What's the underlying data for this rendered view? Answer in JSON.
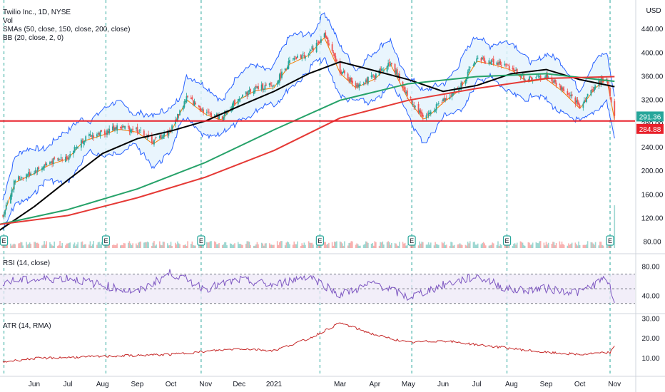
{
  "header": {
    "symbol_line": "Twilio Inc., 1D, NYSE",
    "vol_label": "Vol",
    "sma_label": "SMAs (50, close, 150, close, 200, close)",
    "bb_label": "BB (20, close, 2, 0)",
    "currency_label": "USD"
  },
  "colors": {
    "up": "#26a69a",
    "down": "#ef5350",
    "sma50": "#000000",
    "sma150": "#26a269",
    "sma200": "#e53935",
    "bb_basis": "#f57c00",
    "bb_band": "#2962ff",
    "bb_fill": "#e3f2fd",
    "support": "#e8202a",
    "rsi": "#7e57c2",
    "atr": "#c62828"
  },
  "chart_data": [
    {
      "type": "candlestick",
      "title": "Twilio Inc., 1D, NYSE",
      "x_labels": [
        "Jun",
        "Jul",
        "Aug",
        "Sep",
        "Oct",
        "Nov",
        "Dec",
        "2021",
        "Mar",
        "Apr",
        "May",
        "Jun",
        "Jul",
        "Aug",
        "Sep",
        "Oct",
        "Nov"
      ],
      "y_ticks": [
        80,
        120,
        160,
        200,
        240,
        280,
        320,
        360,
        400,
        440
      ],
      "ylim": [
        70,
        480
      ],
      "last_price_label": "291.36",
      "support_label": "284.88",
      "support_level": 284.88,
      "earnings_marker_label": "E",
      "earnings_markers": [
        "2020-05",
        "2020-08",
        "2020-10",
        "2021-02",
        "2021-05",
        "2021-07",
        "2021-11"
      ],
      "close_path": [
        {
          "x": "2020-05-01",
          "y": 110
        },
        {
          "x": "2020-05-15",
          "y": 185
        },
        {
          "x": "2020-06-01",
          "y": 200
        },
        {
          "x": "2020-06-15",
          "y": 215
        },
        {
          "x": "2020-07-01",
          "y": 225
        },
        {
          "x": "2020-07-15",
          "y": 255
        },
        {
          "x": "2020-08-01",
          "y": 265
        },
        {
          "x": "2020-08-15",
          "y": 275
        },
        {
          "x": "2020-09-01",
          "y": 270
        },
        {
          "x": "2020-09-15",
          "y": 250
        },
        {
          "x": "2020-10-01",
          "y": 270
        },
        {
          "x": "2020-10-15",
          "y": 325
        },
        {
          "x": "2020-11-01",
          "y": 300
        },
        {
          "x": "2020-11-15",
          "y": 290
        },
        {
          "x": "2020-12-01",
          "y": 325
        },
        {
          "x": "2020-12-15",
          "y": 340
        },
        {
          "x": "2021-01-01",
          "y": 345
        },
        {
          "x": "2021-01-15",
          "y": 385
        },
        {
          "x": "2021-02-01",
          "y": 400
        },
        {
          "x": "2021-02-15",
          "y": 430
        },
        {
          "x": "2021-03-01",
          "y": 370
        },
        {
          "x": "2021-03-15",
          "y": 345
        },
        {
          "x": "2021-04-01",
          "y": 360
        },
        {
          "x": "2021-04-15",
          "y": 385
        },
        {
          "x": "2021-05-01",
          "y": 325
        },
        {
          "x": "2021-05-15",
          "y": 290
        },
        {
          "x": "2021-06-01",
          "y": 320
        },
        {
          "x": "2021-06-15",
          "y": 340
        },
        {
          "x": "2021-07-01",
          "y": 390
        },
        {
          "x": "2021-07-15",
          "y": 385
        },
        {
          "x": "2021-08-01",
          "y": 375
        },
        {
          "x": "2021-08-15",
          "y": 355
        },
        {
          "x": "2021-09-01",
          "y": 360
        },
        {
          "x": "2021-09-15",
          "y": 340
        },
        {
          "x": "2021-10-01",
          "y": 310
        },
        {
          "x": "2021-10-15",
          "y": 345
        },
        {
          "x": "2021-10-25",
          "y": 360
        },
        {
          "x": "2021-11-01",
          "y": 291
        }
      ],
      "series": [
        {
          "name": "SMA 50",
          "values": [
            {
              "x": "2020-05-01",
              "y": 100
            },
            {
              "x": "2020-06-01",
              "y": 140
            },
            {
              "x": "2020-07-01",
              "y": 185
            },
            {
              "x": "2020-08-01",
              "y": 230
            },
            {
              "x": "2020-09-01",
              "y": 255
            },
            {
              "x": "2020-10-01",
              "y": 268
            },
            {
              "x": "2020-11-01",
              "y": 285
            },
            {
              "x": "2020-12-01",
              "y": 310
            },
            {
              "x": "2021-01-01",
              "y": 335
            },
            {
              "x": "2021-02-01",
              "y": 365
            },
            {
              "x": "2021-03-01",
              "y": 385
            },
            {
              "x": "2021-04-01",
              "y": 370
            },
            {
              "x": "2021-05-01",
              "y": 355
            },
            {
              "x": "2021-06-01",
              "y": 335
            },
            {
              "x": "2021-07-01",
              "y": 345
            },
            {
              "x": "2021-08-01",
              "y": 365
            },
            {
              "x": "2021-09-01",
              "y": 372
            },
            {
              "x": "2021-10-01",
              "y": 355
            },
            {
              "x": "2021-11-01",
              "y": 343
            }
          ]
        },
        {
          "name": "SMA 150",
          "values": [
            {
              "x": "2020-05-01",
              "y": 110
            },
            {
              "x": "2020-07-01",
              "y": 135
            },
            {
              "x": "2020-09-01",
              "y": 170
            },
            {
              "x": "2020-11-01",
              "y": 215
            },
            {
              "x": "2021-01-01",
              "y": 270
            },
            {
              "x": "2021-03-01",
              "y": 320
            },
            {
              "x": "2021-05-01",
              "y": 348
            },
            {
              "x": "2021-07-01",
              "y": 360
            },
            {
              "x": "2021-09-01",
              "y": 365
            },
            {
              "x": "2021-11-01",
              "y": 352
            }
          ]
        },
        {
          "name": "SMA 200",
          "values": [
            {
              "x": "2020-05-01",
              "y": 110
            },
            {
              "x": "2020-07-01",
              "y": 125
            },
            {
              "x": "2020-09-01",
              "y": 155
            },
            {
              "x": "2020-11-01",
              "y": 190
            },
            {
              "x": "2021-01-01",
              "y": 235
            },
            {
              "x": "2021-03-01",
              "y": 290
            },
            {
              "x": "2021-05-01",
              "y": 320
            },
            {
              "x": "2021-07-01",
              "y": 340
            },
            {
              "x": "2021-09-01",
              "y": 357
            },
            {
              "x": "2021-11-01",
              "y": 360
            }
          ]
        }
      ]
    },
    {
      "type": "bar",
      "title": "Vol",
      "note": "volume histogram at bottom of price pane; large spike on last day"
    },
    {
      "type": "line",
      "title": "RSI (14, close)",
      "y_ticks": [
        40,
        80
      ],
      "levels": [
        30,
        70
      ],
      "ylim": [
        20,
        90
      ],
      "values": [
        {
          "x": "2020-05-01",
          "y": 60
        },
        {
          "x": "2020-06-01",
          "y": 62
        },
        {
          "x": "2020-07-01",
          "y": 65
        },
        {
          "x": "2020-08-01",
          "y": 55
        },
        {
          "x": "2020-09-01",
          "y": 45
        },
        {
          "x": "2020-10-01",
          "y": 72
        },
        {
          "x": "2020-11-01",
          "y": 50
        },
        {
          "x": "2020-12-01",
          "y": 62
        },
        {
          "x": "2021-01-01",
          "y": 55
        },
        {
          "x": "2021-02-01",
          "y": 68
        },
        {
          "x": "2021-03-01",
          "y": 42
        },
        {
          "x": "2021-04-01",
          "y": 58
        },
        {
          "x": "2021-05-01",
          "y": 38
        },
        {
          "x": "2021-06-01",
          "y": 55
        },
        {
          "x": "2021-07-01",
          "y": 67
        },
        {
          "x": "2021-08-01",
          "y": 48
        },
        {
          "x": "2021-09-01",
          "y": 50
        },
        {
          "x": "2021-10-01",
          "y": 45
        },
        {
          "x": "2021-10-25",
          "y": 65
        },
        {
          "x": "2021-11-01",
          "y": 30
        }
      ]
    },
    {
      "type": "line",
      "title": "ATR (14, RMA)",
      "y_ticks": [
        10.0,
        20.0,
        30.0
      ],
      "ylim": [
        2,
        32
      ],
      "values": [
        {
          "x": "2020-05-01",
          "y": 8
        },
        {
          "x": "2020-06-01",
          "y": 10
        },
        {
          "x": "2020-08-01",
          "y": 11
        },
        {
          "x": "2020-10-01",
          "y": 12
        },
        {
          "x": "2020-12-01",
          "y": 15
        },
        {
          "x": "2021-01-01",
          "y": 14
        },
        {
          "x": "2021-02-01",
          "y": 20
        },
        {
          "x": "2021-03-01",
          "y": 28
        },
        {
          "x": "2021-04-01",
          "y": 22
        },
        {
          "x": "2021-05-01",
          "y": 18
        },
        {
          "x": "2021-06-01",
          "y": 19
        },
        {
          "x": "2021-07-01",
          "y": 17
        },
        {
          "x": "2021-08-01",
          "y": 15
        },
        {
          "x": "2021-09-01",
          "y": 13
        },
        {
          "x": "2021-10-01",
          "y": 12
        },
        {
          "x": "2021-10-28",
          "y": 13
        },
        {
          "x": "2021-11-01",
          "y": 16
        }
      ]
    }
  ]
}
